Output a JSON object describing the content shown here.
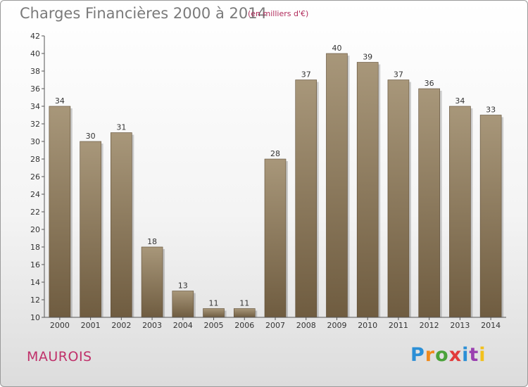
{
  "page": {
    "title": "Charges Financières 2000 à 2014",
    "unit_note": "(en milliers d'€)",
    "commune": "MAUROIS",
    "logo": {
      "text": "Proxiti",
      "colors": [
        "#2b8fd6",
        "#f08a1c",
        "#4aa23a",
        "#e23a3a",
        "#2b8fd6",
        "#9a3fb0",
        "#f2c11c"
      ]
    }
  },
  "chart_data": {
    "type": "bar",
    "title": "Charges Financières 2000 à 2014",
    "subtitle": "(en milliers d'€)",
    "categories": [
      "2000",
      "2001",
      "2002",
      "2003",
      "2004",
      "2005",
      "2006",
      "2007",
      "2008",
      "2009",
      "2010",
      "2011",
      "2012",
      "2013",
      "2014"
    ],
    "values": [
      34,
      30,
      31,
      18,
      13,
      11,
      11,
      28,
      37,
      40,
      39,
      37,
      36,
      34,
      33
    ],
    "ylim": [
      10,
      42
    ],
    "yticks": [
      10,
      12,
      14,
      16,
      18,
      20,
      22,
      24,
      26,
      28,
      30,
      32,
      34,
      36,
      38,
      40,
      42
    ],
    "grid": false,
    "colors": {
      "bar_top": "#a8977a",
      "bar_bottom": "#6f5c40"
    }
  }
}
